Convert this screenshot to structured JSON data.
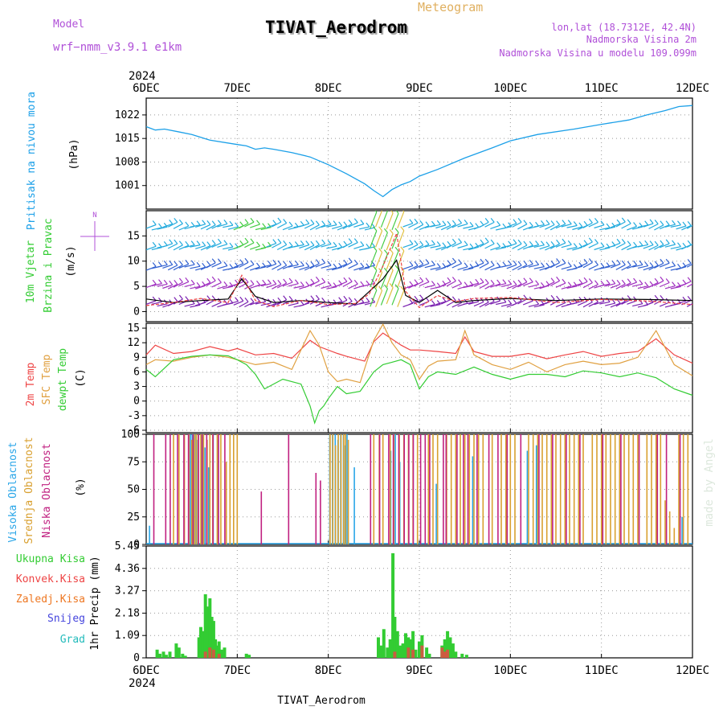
{
  "header": {
    "model_label": "Model",
    "model_name": "wrf−nmm_v3.9.1  e1km",
    "product": "Meteogram",
    "station_title": "TIVAT_Aerodrom",
    "coords": "lon,lat (18.7312E, 42.4N)",
    "elev_station": "Nadmorska Visina 2m",
    "elev_model": "Nadmorska Visina u modelu 109.099m",
    "credit": "made by Angel",
    "footer_station": "TIVAT_Aerodrom",
    "year": "2024"
  },
  "colors": {
    "pressure": "#1ca0e8",
    "temp2m": "#ee4444",
    "sfc_temp": "#e0a040",
    "dewpoint": "#33cc33",
    "high_cloud": "#2aa6e8",
    "mid_cloud": "#d9a030",
    "low_cloud": "#c02080",
    "total_precip": "#33cc33",
    "conv_precip": "#ee4444",
    "strat_precip": "#ee7722",
    "snow": "#4444dd",
    "hail": "#22bbbb",
    "title_purple": "#b050d8",
    "title_orange": "#e0b060"
  },
  "chart_data": [
    {
      "type": "line",
      "panel": "pressure",
      "ylabel": [
        "Pritisak na nivou mora",
        "(hPa)"
      ],
      "x_ticks": [
        "6DEC",
        "7DEC",
        "8DEC",
        "9DEC",
        "10DEC",
        "11DEC",
        "12DEC"
      ],
      "xlim_days": [
        0,
        6
      ],
      "ylim": [
        994,
        1027
      ],
      "yticks": [
        1001,
        1008,
        1015,
        1022
      ],
      "x_days": [
        0,
        0.1,
        0.2,
        0.35,
        0.5,
        0.7,
        1.0,
        1.1,
        1.2,
        1.3,
        1.4,
        1.6,
        1.8,
        2.0,
        2.2,
        2.4,
        2.5,
        2.6,
        2.7,
        2.8,
        2.9,
        3.0,
        3.2,
        3.5,
        3.8,
        4.0,
        4.3,
        4.7,
        5.0,
        5.3,
        5.5,
        5.7,
        5.85,
        6.0
      ],
      "values": [
        1018.5,
        1017.5,
        1017.8,
        1017,
        1016.2,
        1014.5,
        1013.2,
        1012.8,
        1011.8,
        1012.2,
        1011.8,
        1010.8,
        1009.5,
        1007.2,
        1004.5,
        1001.5,
        999.5,
        997.7,
        999.8,
        1001.2,
        1002.2,
        1003.8,
        1005.8,
        1009.2,
        1012.2,
        1014.3,
        1016.2,
        1017.8,
        1019.2,
        1020.5,
        1022,
        1023.3,
        1024.5,
        1024.8
      ]
    },
    {
      "type": "wind-barbs",
      "panel": "wind",
      "ylabel": [
        "10m Vjetar",
        "Brzina i Pravac",
        "(m/s)"
      ],
      "ylim": [
        -2,
        20
      ],
      "yticks": [
        0,
        5,
        10,
        15
      ],
      "compass": "N",
      "speed_x_days": [
        0,
        0.3,
        0.6,
        0.9,
        1.05,
        1.2,
        1.4,
        1.7,
        2.0,
        2.3,
        2.45,
        2.6,
        2.75,
        2.85,
        3.0,
        3.2,
        3.4,
        3.6,
        4.0,
        4.5,
        5.0,
        5.5,
        6.0
      ],
      "speed_values": [
        2.5,
        1.8,
        2.2,
        2.5,
        6.5,
        3.0,
        1.8,
        2.2,
        1.8,
        1.5,
        4.0,
        6.5,
        10.2,
        3.2,
        1.8,
        4.2,
        1.8,
        2.2,
        2.6,
        2.2,
        2.5,
        2.4,
        2.2
      ],
      "gust_x_days": [
        0,
        0.3,
        0.6,
        0.9,
        1.05,
        1.2,
        1.4,
        1.7,
        2.0,
        2.3,
        2.45,
        2.6,
        2.75,
        2.85,
        3.0,
        3.2,
        3.4,
        3.6,
        4.0,
        4.5,
        5.0,
        5.5,
        6.0
      ],
      "gust_values": [
        1.2,
        1.8,
        2.6,
        1.8,
        7.2,
        2.2,
        1.0,
        2.2,
        1.4,
        1.6,
        3.5,
        9.0,
        15.5,
        4.0,
        0.8,
        3.2,
        2.0,
        2.6,
        2.8,
        1.8,
        2.4,
        2.1,
        1.4
      ]
    },
    {
      "type": "line",
      "panel": "temperature",
      "ylabel": [
        "2m Temp",
        "SFC Temp",
        "dewpt Temp",
        "(C)"
      ],
      "ylim": [
        -6.5,
        16
      ],
      "yticks": [
        -6,
        -3,
        0,
        3,
        6,
        9,
        12,
        15
      ],
      "series": [
        {
          "name": "2m Temp",
          "x_days": [
            0,
            0.1,
            0.3,
            0.5,
            0.7,
            0.9,
            1.0,
            1.2,
            1.4,
            1.6,
            1.8,
            1.9,
            2.1,
            2.2,
            2.4,
            2.5,
            2.6,
            2.8,
            2.9,
            3.0,
            3.2,
            3.4,
            3.5,
            3.6,
            3.8,
            4.0,
            4.2,
            4.4,
            4.6,
            4.8,
            5.0,
            5.2,
            5.4,
            5.6,
            5.8,
            6.0
          ],
          "values": [
            9.5,
            11.5,
            9.8,
            10.2,
            11.2,
            10.3,
            10.8,
            9.5,
            9.8,
            8.8,
            12.5,
            11.2,
            9.8,
            9.2,
            8.2,
            12.2,
            14.0,
            11.5,
            10.5,
            10.5,
            10.2,
            9.8,
            13.2,
            10.2,
            9.2,
            9.2,
            9.8,
            8.7,
            9.5,
            10.2,
            9.2,
            9.8,
            10.2,
            12.8,
            9.5,
            7.8
          ]
        },
        {
          "name": "SFC Temp",
          "x_days": [
            0,
            0.1,
            0.3,
            0.5,
            0.7,
            0.9,
            1.0,
            1.2,
            1.4,
            1.6,
            1.8,
            1.9,
            2.0,
            2.1,
            2.2,
            2.35,
            2.5,
            2.6,
            2.7,
            2.8,
            2.9,
            3.0,
            3.1,
            3.2,
            3.4,
            3.5,
            3.6,
            3.8,
            4.0,
            4.2,
            4.4,
            4.6,
            4.8,
            5.0,
            5.2,
            5.4,
            5.6,
            5.8,
            6.0
          ],
          "values": [
            7.5,
            8.5,
            8.2,
            9.0,
            9.5,
            9.0,
            8.5,
            7.5,
            8.0,
            6.5,
            14.5,
            11.5,
            6.0,
            4.0,
            4.5,
            3.8,
            12.5,
            15.8,
            12.0,
            9.5,
            8.5,
            4.5,
            7.2,
            8.2,
            8.5,
            14.5,
            9.5,
            7.5,
            6.5,
            8.0,
            6.0,
            7.5,
            8.2,
            7.5,
            7.8,
            9.0,
            14.5,
            7.5,
            5.2
          ]
        },
        {
          "name": "dewpt Temp",
          "x_days": [
            0,
            0.1,
            0.3,
            0.5,
            0.7,
            0.9,
            1.0,
            1.1,
            1.2,
            1.3,
            1.5,
            1.7,
            1.8,
            1.85,
            1.9,
            1.95,
            2.0,
            2.1,
            2.2,
            2.35,
            2.5,
            2.6,
            2.7,
            2.8,
            2.9,
            3.0,
            3.1,
            3.2,
            3.4,
            3.6,
            3.8,
            4.0,
            4.2,
            4.4,
            4.6,
            4.8,
            5.0,
            5.2,
            5.4,
            5.6,
            5.8,
            6.0
          ],
          "values": [
            6.5,
            5.0,
            8.5,
            9.2,
            9.5,
            9.3,
            8.5,
            7.5,
            5.5,
            2.5,
            4.5,
            3.5,
            -1.0,
            -4.5,
            -2.0,
            -1.0,
            0.5,
            3.0,
            1.5,
            2.0,
            6.0,
            7.5,
            8.0,
            8.5,
            7.5,
            2.5,
            5.0,
            6.0,
            5.5,
            7.0,
            5.5,
            4.5,
            5.5,
            5.5,
            5.0,
            6.2,
            5.8,
            5.0,
            5.8,
            4.8,
            2.5,
            1.2
          ]
        }
      ]
    },
    {
      "type": "bar",
      "panel": "cloud",
      "ylabel": [
        "Visoka Oblacnost",
        "Srednja Oblacnost",
        "Niska Oblacnost",
        "(%)"
      ],
      "ylim": [
        0,
        100
      ],
      "yticks": [
        0,
        25,
        50,
        75,
        100
      ],
      "series": [
        {
          "name": "Visoka Oblacnost",
          "x_days": [
            0.05,
            0.48,
            0.5,
            0.52,
            0.54,
            0.56,
            0.58,
            0.62,
            0.64,
            0.66,
            0.7,
            0.75,
            0.8,
            2.03,
            2.06,
            2.09,
            2.12,
            2.15,
            2.18,
            2.2,
            2.22,
            2.3,
            2.7,
            2.75,
            2.8,
            3.2,
            3.6,
            4.2,
            4.3,
            5.9
          ],
          "values": [
            17,
            95,
            100,
            100,
            100,
            100,
            95,
            100,
            100,
            88,
            70,
            100,
            95,
            100,
            100,
            100,
            95,
            100,
            100,
            90,
            100,
            70,
            85,
            100,
            75,
            55,
            80,
            85,
            90,
            25
          ]
        },
        {
          "name": "Srednja Oblacnost",
          "x_days": [
            0.3,
            0.36,
            0.42,
            0.47,
            0.5,
            0.53,
            0.55,
            0.57,
            0.6,
            0.63,
            0.67,
            0.7,
            0.73,
            0.78,
            0.82,
            0.88,
            0.92,
            0.96,
            1.0,
            2.02,
            2.05,
            2.08,
            2.11,
            2.14,
            2.17,
            2.19,
            2.22,
            2.5,
            2.56,
            2.6,
            2.68,
            2.72,
            2.78,
            2.83,
            2.88,
            2.93,
            2.98,
            3.1,
            3.15,
            3.2,
            3.3,
            3.35,
            3.4,
            3.45,
            3.5,
            3.55,
            3.6,
            3.65,
            3.7,
            3.8,
            3.9,
            3.95,
            4.0,
            4.05,
            4.2,
            4.25,
            4.3,
            4.35,
            4.4,
            4.45,
            4.5,
            4.55,
            4.6,
            4.65,
            4.7,
            4.75,
            4.8,
            4.9,
            4.95,
            5.0,
            5.05,
            5.1,
            5.15,
            5.2,
            5.25,
            5.3,
            5.35,
            5.4,
            5.5,
            5.55,
            5.6,
            5.65,
            5.7,
            5.75,
            5.8,
            5.85,
            5.9,
            5.95
          ],
          "values": [
            100,
            100,
            100,
            100,
            95,
            100,
            100,
            100,
            100,
            100,
            95,
            100,
            100,
            100,
            100,
            75,
            100,
            100,
            100,
            100,
            100,
            90,
            100,
            100,
            100,
            100,
            95,
            100,
            100,
            100,
            100,
            100,
            100,
            100,
            100,
            100,
            100,
            100,
            100,
            100,
            100,
            100,
            100,
            100,
            100,
            100,
            100,
            100,
            100,
            100,
            100,
            100,
            100,
            100,
            100,
            100,
            100,
            100,
            100,
            100,
            100,
            100,
            100,
            100,
            100,
            100,
            100,
            100,
            100,
            100,
            100,
            100,
            100,
            100,
            100,
            100,
            100,
            100,
            100,
            100,
            100,
            100,
            40,
            30,
            15,
            100,
            100,
            100
          ]
        },
        {
          "name": "Niska Oblacnost",
          "x_days": [
            0.07,
            0.2,
            0.25,
            0.33,
            0.4,
            0.45,
            0.5,
            0.56,
            0.6,
            0.65,
            0.72,
            0.78,
            0.85,
            1.25,
            1.55,
            1.85,
            1.9,
            2.45,
            2.55,
            2.65,
            2.7,
            2.76,
            2.82,
            2.87,
            2.92,
            3.0,
            3.05,
            3.1,
            3.25,
            3.28,
            3.4,
            3.47,
            3.52,
            3.62,
            3.75,
            3.85,
            3.95,
            4.1,
            4.3,
            4.45,
            4.6,
            4.75,
            5.0,
            5.2,
            5.4,
            5.6,
            5.7,
            5.85
          ],
          "values": [
            100,
            100,
            100,
            100,
            100,
            100,
            100,
            100,
            100,
            100,
            100,
            100,
            100,
            48,
            100,
            65,
            58,
            100,
            100,
            100,
            100,
            100,
            100,
            100,
            100,
            100,
            100,
            100,
            100,
            100,
            100,
            100,
            100,
            100,
            100,
            100,
            100,
            100,
            100,
            100,
            100,
            100,
            100,
            100,
            100,
            100,
            100,
            100
          ]
        }
      ]
    },
    {
      "type": "bar",
      "panel": "precipitation",
      "ylabel": [
        "1hr Precip (mm)"
      ],
      "legend": [
        "Ukupna Kisa",
        "Konvek.Kisa",
        "Zaledj.Kisa",
        "Snijeg",
        "Grad"
      ],
      "ylim": [
        0,
        5.45
      ],
      "yticks": [
        0,
        1.09,
        2.18,
        3.27,
        4.36,
        5.45
      ],
      "series": [
        {
          "name": "Ukupna Kisa",
          "x_days": [
            0.12,
            0.15,
            0.19,
            0.22,
            0.26,
            0.33,
            0.36,
            0.4,
            0.43,
            0.58,
            0.6,
            0.62,
            0.65,
            0.68,
            0.7,
            0.72,
            0.74,
            0.76,
            0.78,
            0.8,
            0.83,
            0.86,
            1.1,
            1.13,
            2.55,
            2.58,
            2.61,
            2.65,
            2.68,
            2.71,
            2.73,
            2.76,
            2.79,
            2.82,
            2.85,
            2.88,
            2.91,
            2.93,
            2.96,
            3.0,
            3.03,
            3.08,
            3.11,
            3.25,
            3.28,
            3.31,
            3.34,
            3.37,
            3.4,
            3.47,
            3.52
          ],
          "values": [
            0.4,
            0.2,
            0.3,
            0.15,
            0.3,
            0.7,
            0.5,
            0.2,
            0.1,
            1.0,
            1.5,
            1.3,
            3.1,
            2.5,
            2.9,
            2.0,
            1.8,
            0.9,
            0.6,
            0.8,
            0.4,
            0.5,
            0.2,
            0.15,
            1.0,
            0.6,
            1.4,
            0.5,
            0.9,
            5.1,
            2.0,
            1.3,
            0.6,
            0.7,
            1.2,
            1.0,
            0.9,
            1.3,
            0.4,
            0.8,
            1.1,
            0.5,
            0.2,
            0.6,
            0.9,
            1.3,
            1.0,
            0.7,
            0.3,
            0.2,
            0.15
          ]
        },
        {
          "name": "Konvek.Kisa",
          "x_days": [
            0.65,
            0.7,
            0.74,
            0.8,
            2.73,
            2.88,
            2.93,
            3.03,
            3.25,
            3.28,
            3.31
          ],
          "values": [
            0.3,
            0.5,
            0.4,
            0.2,
            0.3,
            0.5,
            0.4,
            0.6,
            0.5,
            0.3,
            0.4
          ]
        }
      ]
    }
  ]
}
